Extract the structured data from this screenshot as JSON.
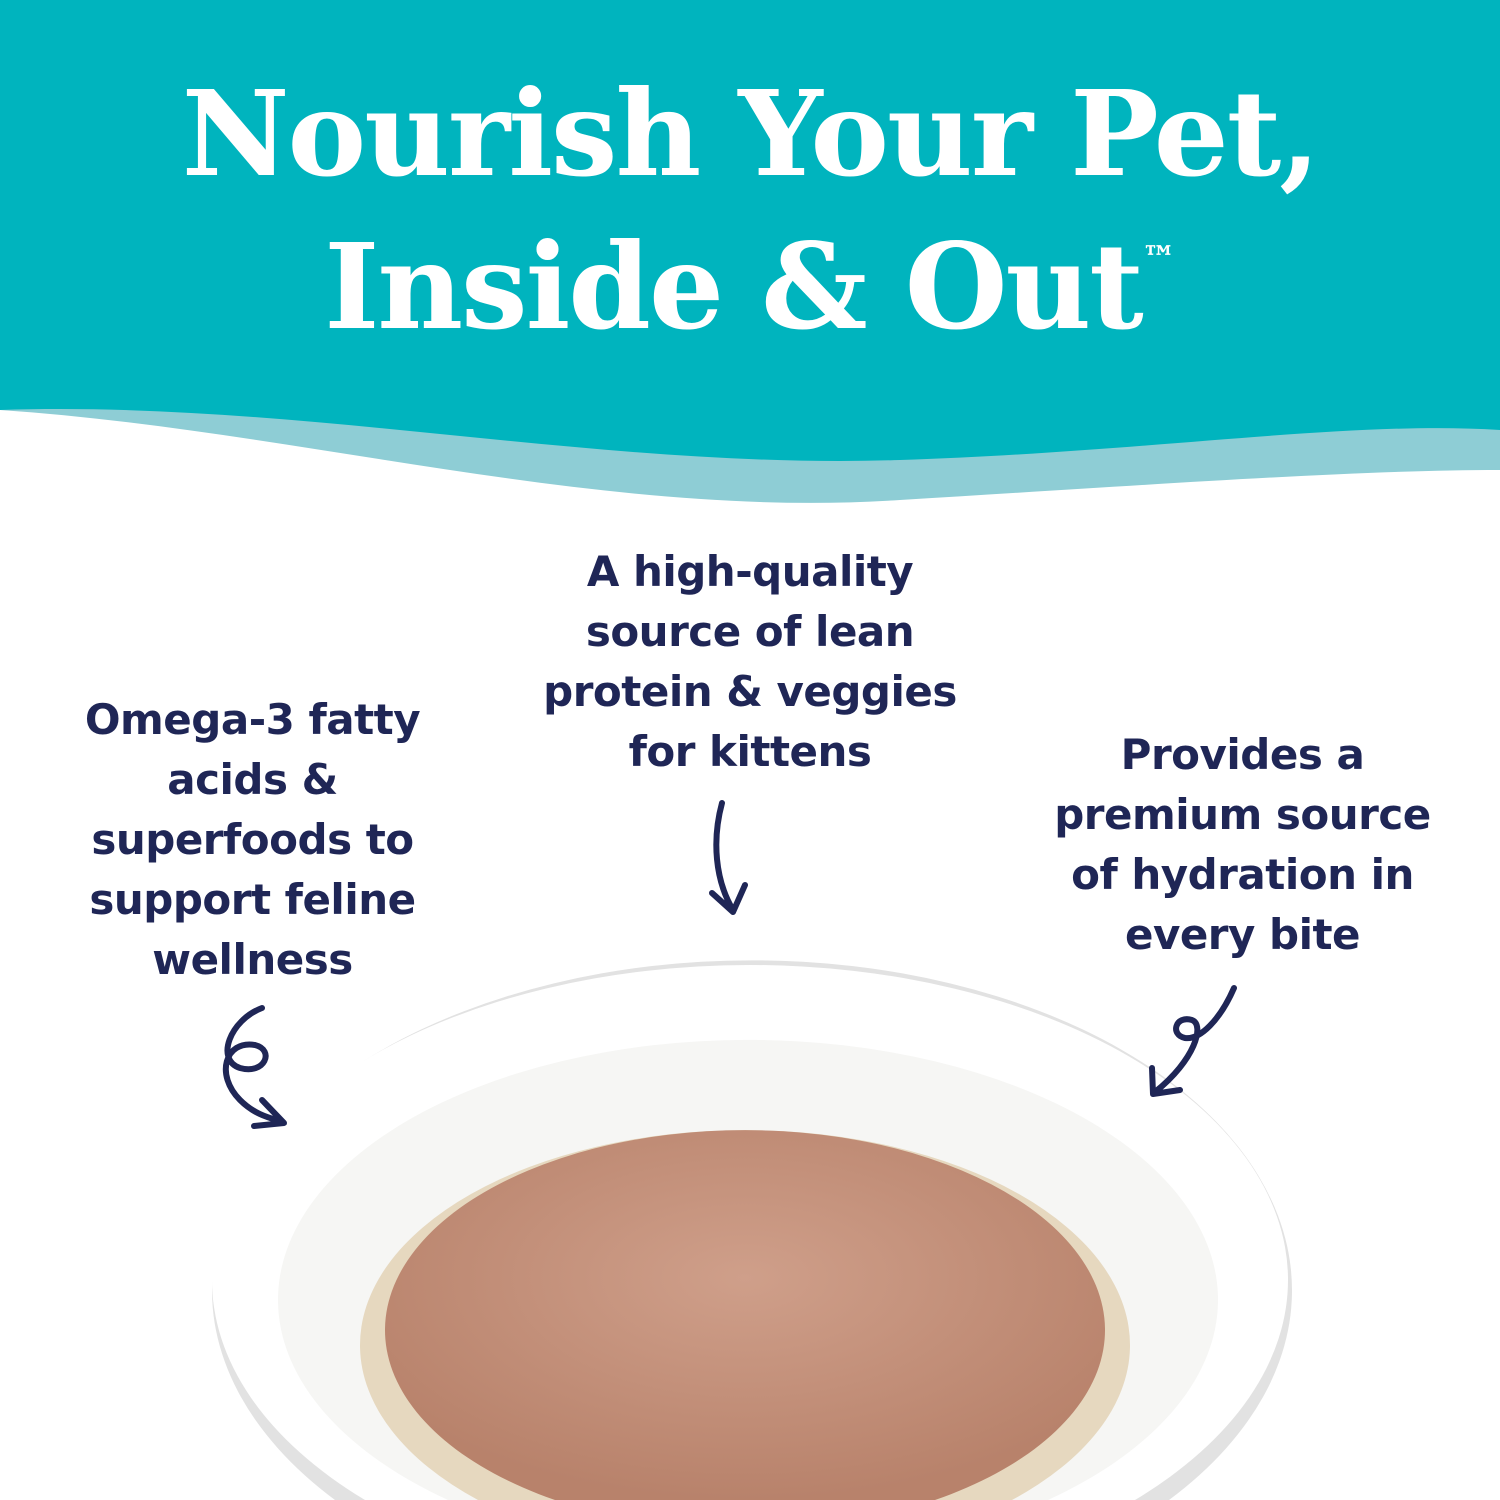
{
  "header": {
    "title_line1": "Nourish Your Pet,",
    "title_line2": "Inside & Out",
    "trademark": "™"
  },
  "callouts": [
    {
      "lines": [
        "Omega-3 fatty",
        "acids &",
        "superfoods to",
        "support feline",
        "wellness"
      ]
    },
    {
      "lines": [
        "A high-quality",
        "source of lean",
        "protein & veggies",
        "for kittens"
      ]
    },
    {
      "lines": [
        "Provides a",
        "premium source",
        "of hydration in",
        "every bite"
      ]
    }
  ],
  "colors": {
    "teal": "#00b4be",
    "light_teal": "#8ecdd5",
    "navy_text": "#1f2656",
    "pate": "#c8937c"
  },
  "icons": [
    "curly-arrow",
    "down-arrow",
    "loop-arrow"
  ]
}
